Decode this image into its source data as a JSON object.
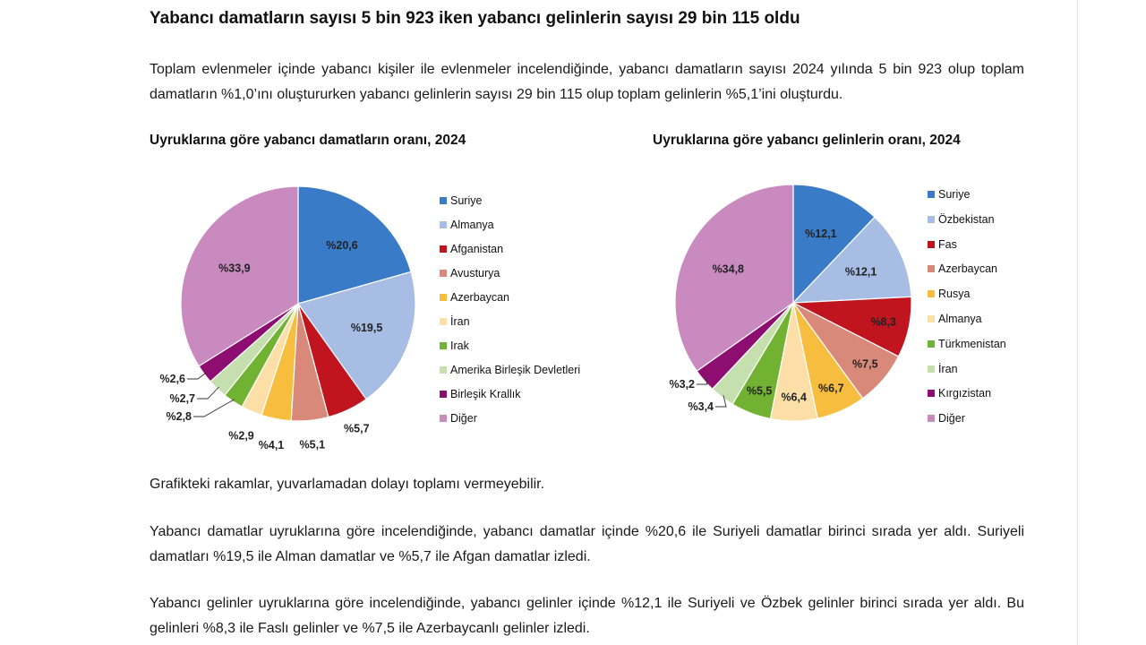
{
  "headline": "Yabancı damatların sayısı 5 bin 923 iken yabancı gelinlerin sayısı 29 bin 115 oldu",
  "intro": "Toplam evlenmeler içinde yabancı kişiler ile evlenmeler incelendiğinde, yabancı damatların sayısı 2024 yılında 5 bin 923 olup toplam damatların %1,0’ını oluştururken yabancı gelinlerin sayısı 29 bin 115 olup toplam gelinlerin %5,1’ini oluşturdu.",
  "note": "Grafikteki rakamlar, yuvarlamadan dolayı toplamı vermeyebilir.",
  "paragraph_grooms": "Yabancı damatlar uyruklarına göre incelendiğinde, yabancı damatlar içinde %20,6 ile Suriyeli damatlar birinci sırada yer aldı. Suriyeli damatları %19,5 ile Alman damatlar ve %5,7 ile Afgan damatlar izledi.",
  "paragraph_brides": "Yabancı gelinler uyruklarına göre incelendiğinde, yabancı gelinler içinde %12,1 ile Suriyeli ve Özbek gelinler birinci sırada yer aldı. Bu gelinleri %8,3 ile Faslı gelinler ve %7,5 ile Azerbaycanlı gelinler izledi.",
  "chart_data": [
    {
      "type": "pie",
      "title": "Uyruklarına göre yabancı damatların oranı, 2024",
      "categories": [
        "Suriye",
        "Almanya",
        "Afganistan",
        "Avusturya",
        "Azerbaycan",
        "İran",
        "Irak",
        "Amerika Birleşik Devletleri",
        "Birleşik Krallık",
        "Diğer"
      ],
      "values": [
        20.6,
        19.5,
        5.7,
        5.1,
        4.1,
        2.9,
        2.8,
        2.7,
        2.6,
        33.9
      ],
      "labels": [
        "%20,6",
        "%19,5",
        "%5,7",
        "%5,1",
        "%4,1",
        "%2,9",
        "%2,8",
        "%2,7",
        "%2,6",
        "%33,9"
      ],
      "colors": [
        "#3a7bc8",
        "#a7bde3",
        "#c0141f",
        "#d9897a",
        "#f7bd3f",
        "#fbdfa7",
        "#72b233",
        "#c6dfae",
        "#8e0d70",
        "#c98ac0"
      ],
      "legend_position": "right"
    },
    {
      "type": "pie",
      "title": "Uyruklarına göre yabancı gelinlerin oranı, 2024",
      "categories": [
        "Suriye",
        "Özbekistan",
        "Fas",
        "Azerbaycan",
        "Rusya",
        "Almanya",
        "Türkmenistan",
        "İran",
        "Kırgızistan",
        "Diğer"
      ],
      "values": [
        12.1,
        12.1,
        8.3,
        7.5,
        6.7,
        6.4,
        5.5,
        3.4,
        3.2,
        34.8
      ],
      "labels": [
        "%12,1",
        "%12,1",
        "%8,3",
        "%7,5",
        "%6,7",
        "%6,4",
        "%5,5",
        "%3,4",
        "%3,2",
        "%34,8"
      ],
      "colors": [
        "#3a7bc8",
        "#a7bde3",
        "#c0141f",
        "#d9897a",
        "#f7bd3f",
        "#fbdfa7",
        "#72b233",
        "#c6dfae",
        "#8e0d70",
        "#c98ac0"
      ],
      "legend_position": "right"
    }
  ]
}
